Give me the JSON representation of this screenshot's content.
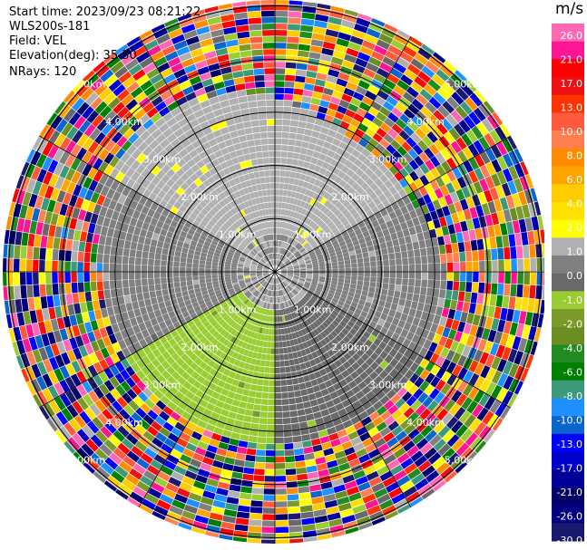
{
  "header": {
    "start_time": "Start time: 2023/09/23 08:21:22",
    "instrument": "WLS200s-181",
    "field": "Field: VEL",
    "elevation": "Elevation(deg): 35.30",
    "nrays": "NRays: 120"
  },
  "colorbar": {
    "unit": "m/s",
    "ticks": [
      "26.0",
      "21.0",
      "17.0",
      "13.0",
      "10.0",
      "8.0",
      "6.0",
      "4.0",
      "2.0",
      "1.0",
      "0.0",
      "-1.0",
      "-2.0",
      "-4.0",
      "-6.0",
      "-8.0",
      "-10.0",
      "-13.0",
      "-17.0",
      "-21.0",
      "-26.0",
      "-30.0"
    ],
    "colors": [
      "#ff69b4",
      "#ff1493",
      "#ff0000",
      "#ee1111",
      "#ff3300",
      "#ff5a3c",
      "#ff7f50",
      "#ff8c00",
      "#ffa500",
      "#ffcc00",
      "#ffe000",
      "#ffff00",
      "#b0b0b0",
      "#808080",
      "#696969",
      "#9acd32",
      "#7a9a2a",
      "#6b8e23",
      "#228b22",
      "#008000",
      "#3c9a7a",
      "#1e90ff",
      "#0a66cc",
      "#0000ff",
      "#0000cd",
      "#000099",
      "#00006b",
      "#000080",
      "#191970"
    ]
  },
  "chart_data": {
    "type": "heatmap",
    "projection": "polar PPI",
    "field": "VEL",
    "units": "m/s",
    "nrays": 120,
    "range_ring_labels": [
      "1.00km",
      "2.00km",
      "3.00km",
      "4.00km",
      "5.00km"
    ],
    "inner_field": {
      "description_sectors": [
        {
          "from_deg": 300,
          "to_deg": 60,
          "value": 2.5
        },
        {
          "from_deg": 60,
          "to_deg": 120,
          "value": 0.3
        },
        {
          "from_deg": 120,
          "to_deg": 180,
          "value": -2.5
        },
        {
          "from_deg": 180,
          "to_deg": 240,
          "value": -4.5
        },
        {
          "from_deg": 240,
          "to_deg": 300,
          "value": 0.3
        }
      ],
      "max_range_km": 3.2
    },
    "clim": [
      -30.0,
      26.0
    ]
  }
}
